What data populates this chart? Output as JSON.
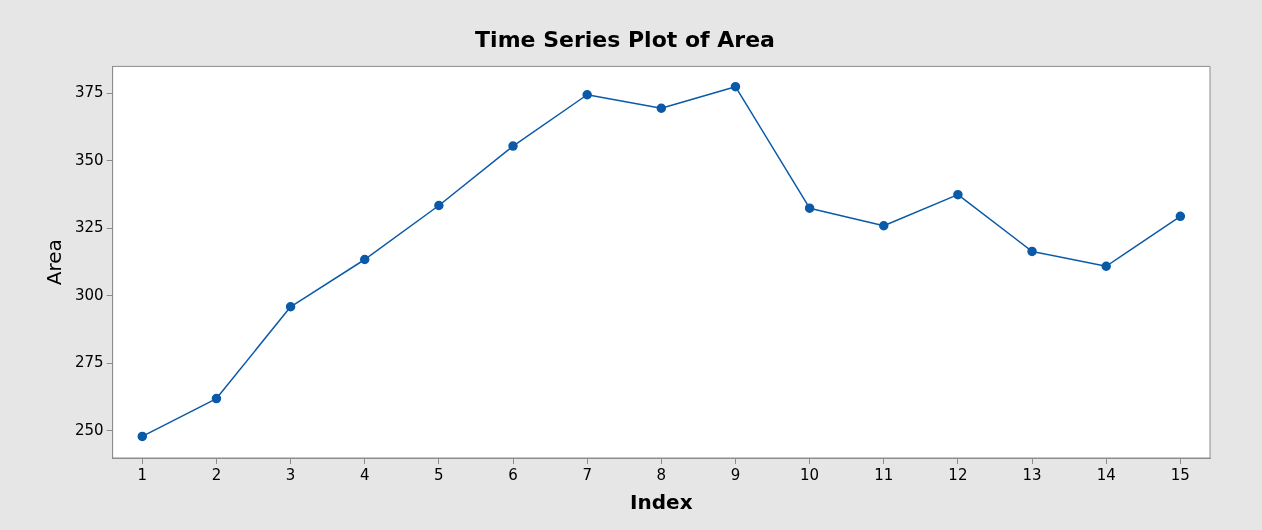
{
  "chart_data": {
    "type": "line",
    "title": "Time Series Plot of Area",
    "xlabel": "Index",
    "ylabel": "Area",
    "x": [
      1,
      2,
      3,
      4,
      5,
      6,
      7,
      8,
      9,
      10,
      11,
      12,
      13,
      14,
      15
    ],
    "series": [
      {
        "color": "#0b5aa8",
        "values": [
          248,
          262,
          296,
          313.5,
          333.5,
          355.5,
          374.5,
          369.5,
          377.5,
          332.5,
          326,
          337.5,
          316.5,
          311,
          329.5
        ]
      }
    ],
    "xlim": [
      0.6,
      15.4
    ],
    "xticks": [
      1,
      2,
      3,
      4,
      5,
      6,
      7,
      8,
      9,
      10,
      11,
      12,
      13,
      14,
      15
    ],
    "ylim": [
      240,
      385
    ],
    "yticks": [
      250,
      275,
      300,
      325,
      350,
      375
    ],
    "grid": false,
    "legend": false,
    "marker": "circle",
    "line_style": "solid"
  }
}
